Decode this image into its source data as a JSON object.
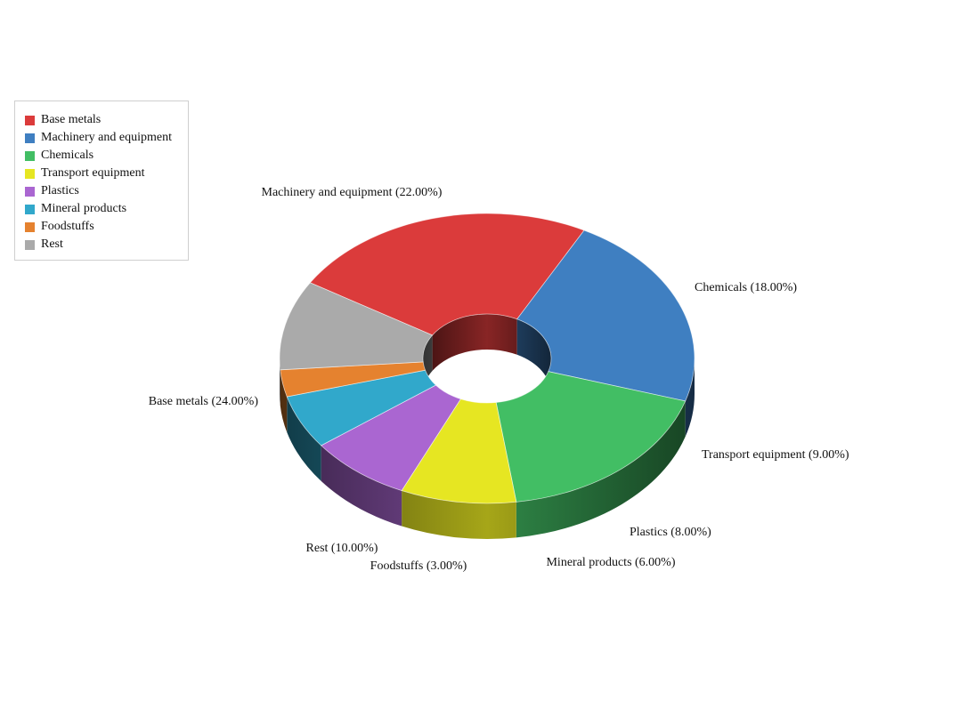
{
  "chart_data": {
    "type": "pie",
    "variant": "3d-donut",
    "title": "",
    "legend_position": "top-left",
    "slices": [
      {
        "name": "Base metals",
        "value": 24.0,
        "label": "Base metals (24.00%)",
        "color": "#db3b3b"
      },
      {
        "name": "Machinery and equipment",
        "value": 22.0,
        "label": "Machinery and equipment (22.00%)",
        "color": "#3f7fc1"
      },
      {
        "name": "Chemicals",
        "value": 18.0,
        "label": "Chemicals (18.00%)",
        "color": "#42be64"
      },
      {
        "name": "Transport equipment",
        "value": 9.0,
        "label": "Transport equipment (9.00%)",
        "color": "#e6e622"
      },
      {
        "name": "Plastics",
        "value": 8.0,
        "label": "Plastics (8.00%)",
        "color": "#aa66d1"
      },
      {
        "name": "Mineral products",
        "value": 6.0,
        "label": "Mineral products (6.00%)",
        "color": "#31a8cb"
      },
      {
        "name": "Foodstuffs",
        "value": 3.0,
        "label": "Foodstuffs (3.00%)",
        "color": "#e5822f"
      },
      {
        "name": "Rest",
        "value": 10.0,
        "label": "Rest (10.00%)",
        "color": "#aaaaaa"
      }
    ]
  }
}
